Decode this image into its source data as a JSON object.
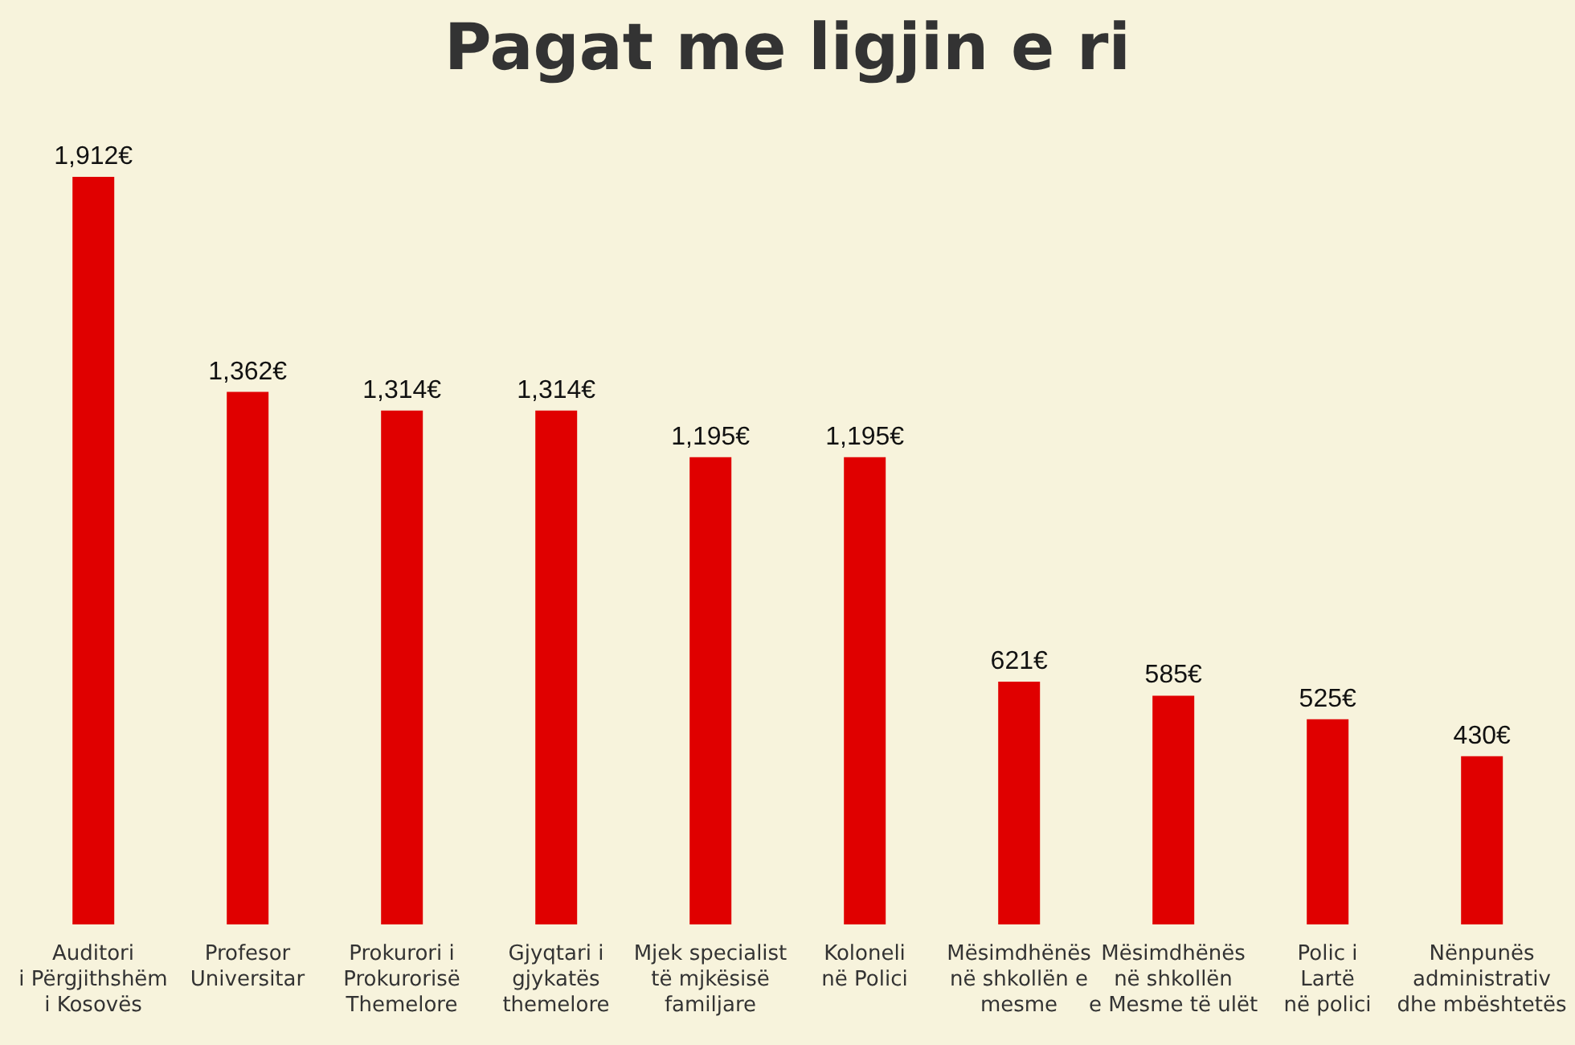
{
  "chart_data": {
    "type": "bar",
    "title": "Pagat me ligjin e ri",
    "categories": [
      "Auditori\ni Përgjithshëm\ni Kosovës",
      "Profesor\nUniversitar",
      "Prokurori  i\nProkurorisë\nThemelore",
      "Gjyqtari i\ngjykatës\nthemelore",
      "Mjek specialist\ntë mjkësisë\nfamiljare",
      "Koloneli\nnë Polici",
      "Mësimdhënës\nnë shkollën e\nmesme",
      "Mësimdhënës\nnë shkollën\ne Mesme të ulët",
      "Polic i\nLartë\nnë polici",
      "Nënpunës\nadministrativ\ndhe mbështetës"
    ],
    "values": [
      1912,
      1362,
      1314,
      1314,
      1195,
      1195,
      621,
      585,
      525,
      430
    ],
    "value_labels": [
      "1,912€",
      "1,362€",
      "1,314€",
      "1,314€",
      "1,195€",
      "1,195€",
      "621€",
      "585€",
      "525€",
      "430€"
    ],
    "color": "#e00000"
  }
}
